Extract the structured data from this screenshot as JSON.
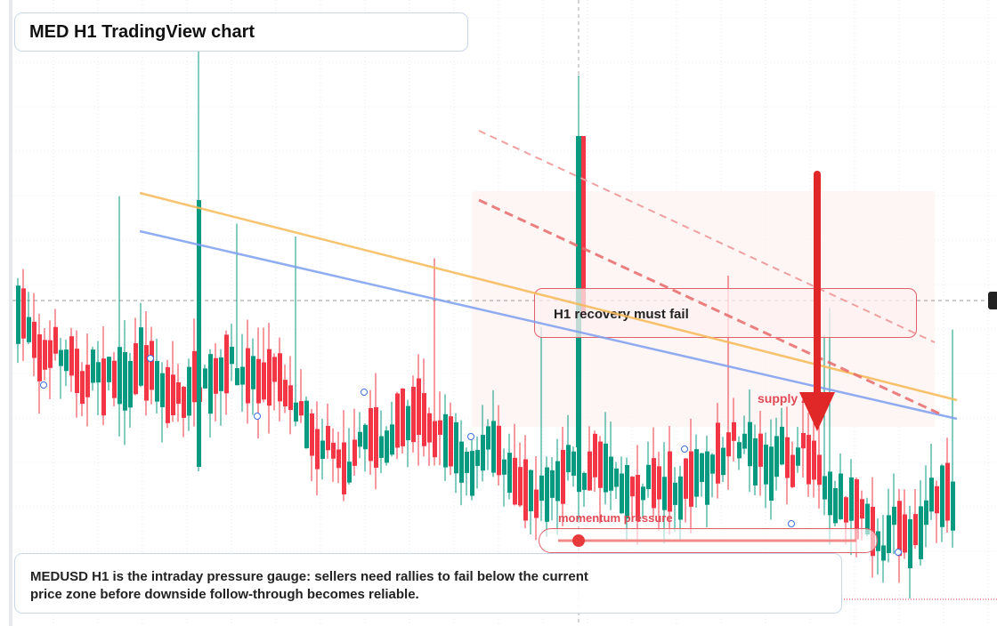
{
  "header": {
    "title": "MED H1 TradingView chart"
  },
  "annotations": {
    "callout": "H1 recovery must fail",
    "zone": "supply zone",
    "gauge": "momentum pressure"
  },
  "caption": "MEDUSD H1 is the intraday pressure gauge: sellers need rallies to fail below the current price zone before downside follow-through becomes reliable."
}
